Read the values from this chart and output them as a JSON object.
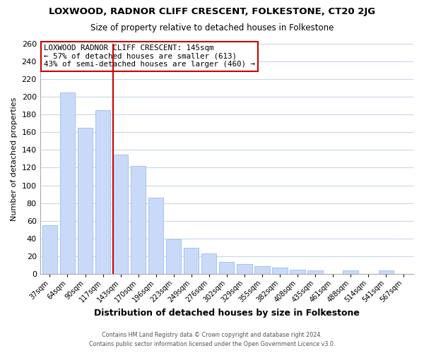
{
  "title": "LOXWOOD, RADNOR CLIFF CRESCENT, FOLKESTONE, CT20 2JG",
  "subtitle": "Size of property relative to detached houses in Folkestone",
  "xlabel": "Distribution of detached houses by size in Folkestone",
  "ylabel": "Number of detached properties",
  "bar_labels": [
    "37sqm",
    "64sqm",
    "90sqm",
    "117sqm",
    "143sqm",
    "170sqm",
    "196sqm",
    "223sqm",
    "249sqm",
    "276sqm",
    "302sqm",
    "329sqm",
    "355sqm",
    "382sqm",
    "408sqm",
    "435sqm",
    "461sqm",
    "488sqm",
    "514sqm",
    "541sqm",
    "567sqm"
  ],
  "bar_values": [
    55,
    205,
    165,
    185,
    135,
    122,
    86,
    39,
    30,
    23,
    14,
    11,
    9,
    7,
    5,
    4,
    0,
    4,
    0,
    4,
    0
  ],
  "bar_color": "#c9daf8",
  "bar_edge_color": "#a4c2f4",
  "highlight_index": 4,
  "highlight_line_color": "#cc0000",
  "annotation_box_color": "#cc0000",
  "ylim": [
    0,
    260
  ],
  "yticks": [
    0,
    20,
    40,
    60,
    80,
    100,
    120,
    140,
    160,
    180,
    200,
    220,
    240,
    260
  ],
  "annotation_box_text": "LOXWOOD RADNOR CLIFF CRESCENT: 145sqm\n← 57% of detached houses are smaller (613)\n43% of semi-detached houses are larger (460) →",
  "footer_line1": "Contains HM Land Registry data © Crown copyright and database right 2024.",
  "footer_line2": "Contains public sector information licensed under the Open Government Licence v3.0.",
  "background_color": "#ffffff",
  "grid_color": "#c8d8e8"
}
